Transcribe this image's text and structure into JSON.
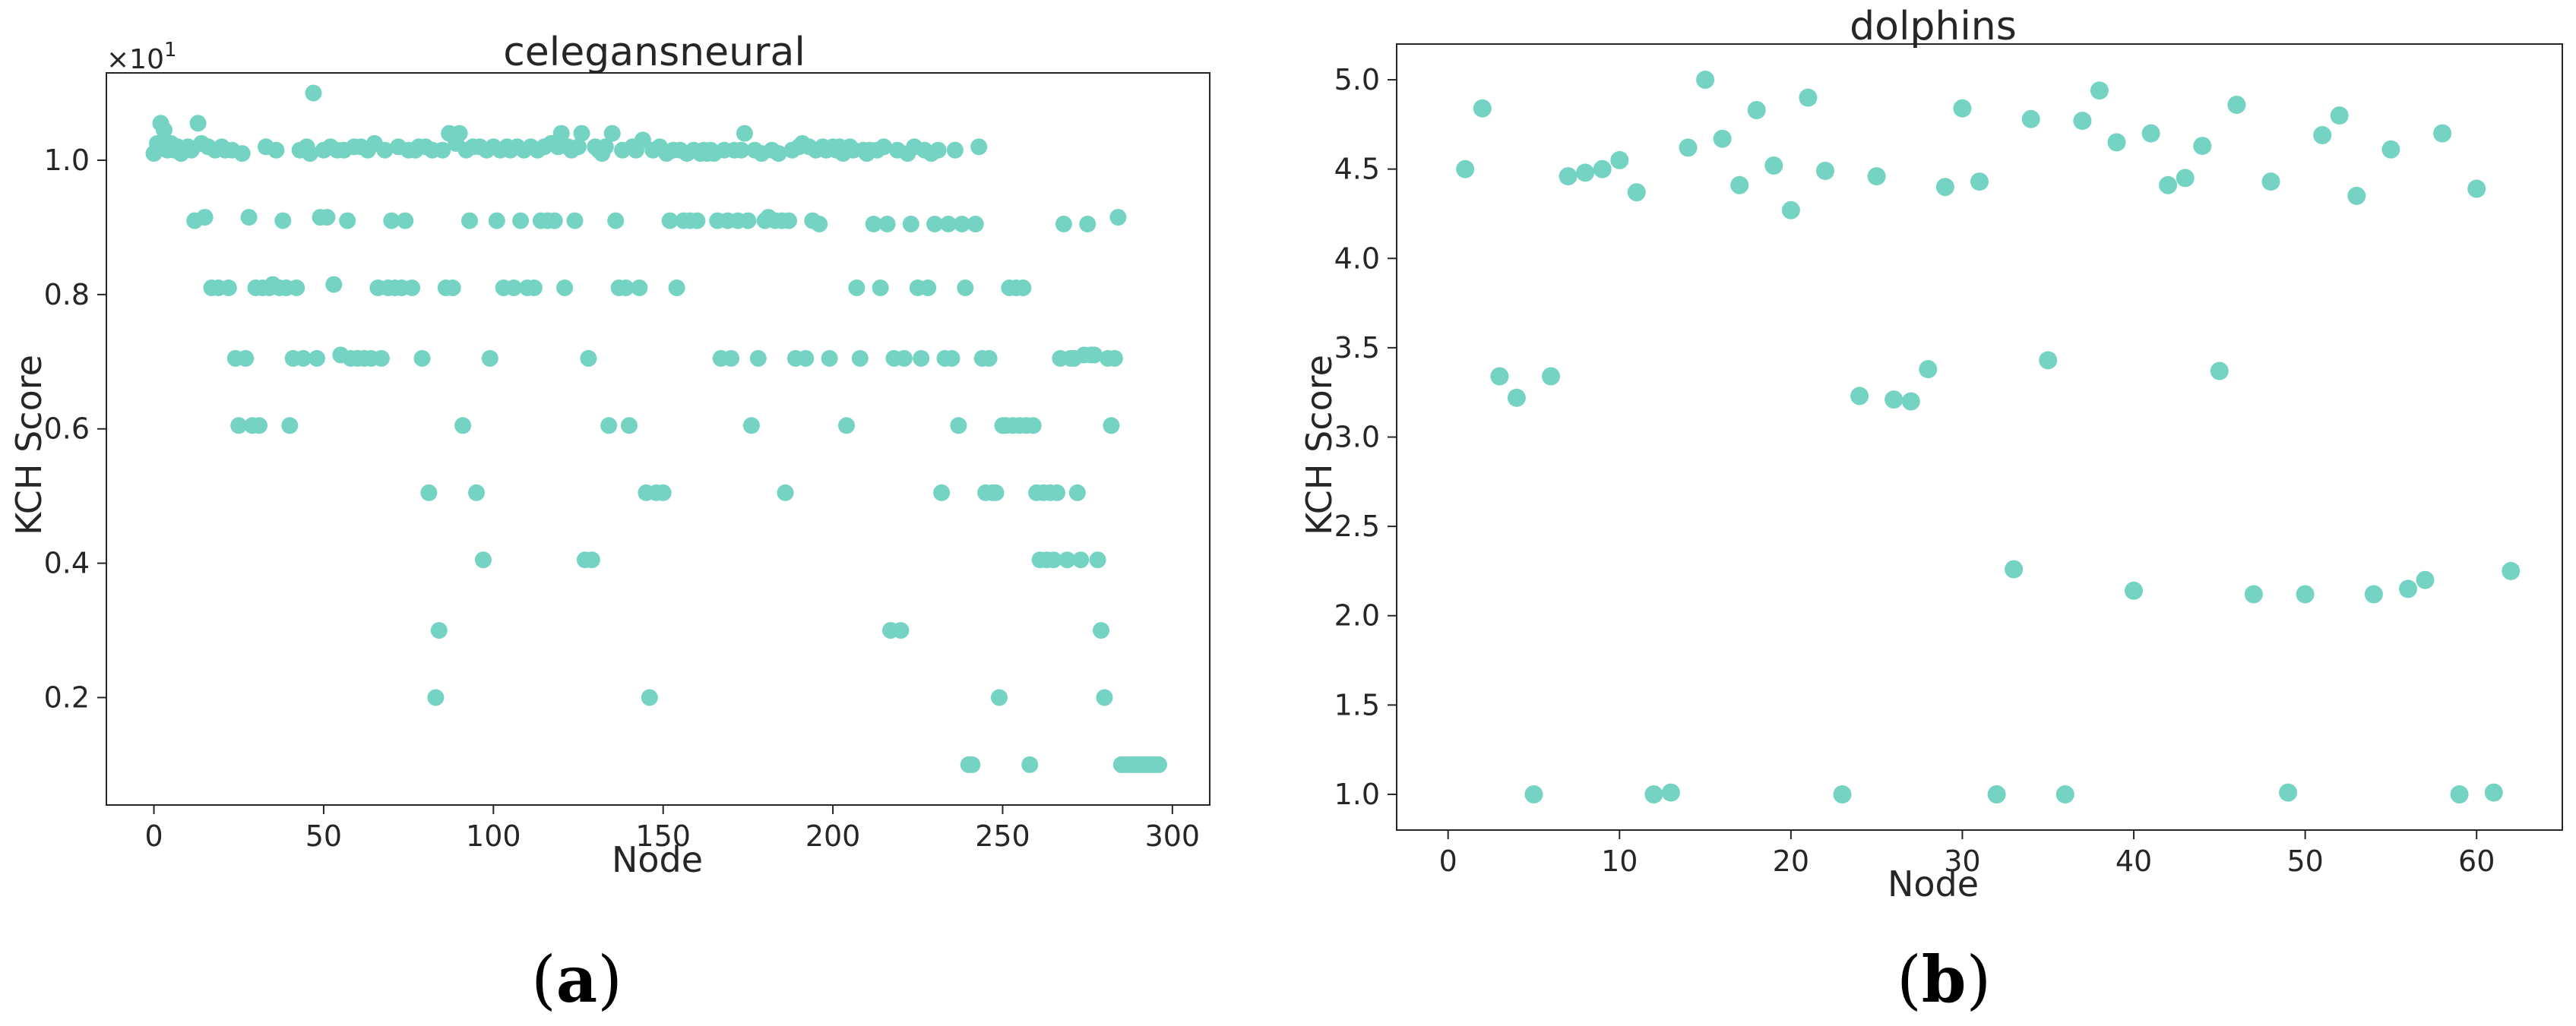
{
  "figure": {
    "panel_labels": [
      {
        "open": "(",
        "letter": "a",
        "close": ")"
      },
      {
        "open": "(",
        "letter": "b",
        "close": ")"
      }
    ]
  },
  "colors": {
    "marker": "#74d3c2",
    "axis": "#262626"
  },
  "chart_data": [
    {
      "type": "scatter",
      "title": "celegansneural",
      "xlabel": "Node",
      "ylabel": "KCH Score",
      "offset_text": "×10",
      "offset_exponent": "1",
      "xlim": [
        -14,
        311
      ],
      "ylim": [
        0.04,
        1.13
      ],
      "xticks": [
        0,
        50,
        100,
        150,
        200,
        250,
        300
      ],
      "yticks": [
        0.2,
        0.4,
        0.6,
        0.8,
        1.0
      ],
      "ytick_labels": [
        "0.2",
        "0.4",
        "0.6",
        "0.8",
        "1.0"
      ],
      "grid": false,
      "series": [
        {
          "x": [
            0,
            1,
            2,
            3,
            4,
            5,
            6,
            7,
            8,
            9,
            10,
            11,
            12,
            13,
            14,
            15,
            16,
            17,
            18,
            19,
            20,
            21,
            22,
            23,
            24,
            25,
            26,
            27,
            28,
            29,
            30,
            31,
            32,
            33,
            34,
            35,
            36,
            37,
            38,
            39,
            40,
            41,
            42,
            43,
            44,
            45,
            46,
            47,
            48,
            49,
            50,
            51,
            52,
            53,
            54,
            55,
            56,
            57,
            58,
            59,
            60,
            61,
            62,
            63,
            64,
            65,
            66,
            67,
            68,
            69,
            70,
            71,
            72,
            73,
            74,
            75,
            76,
            77,
            78,
            79,
            80,
            81,
            82,
            83,
            84,
            85,
            86,
            87,
            88,
            89,
            90,
            91,
            92,
            93,
            94,
            95,
            96,
            97,
            98,
            99,
            100,
            101,
            102,
            103,
            104,
            105,
            106,
            107,
            108,
            109,
            110,
            111,
            112,
            113,
            114,
            115,
            116,
            117,
            118,
            119,
            120,
            121,
            122,
            123,
            124,
            125,
            126,
            127,
            128,
            129,
            130,
            131,
            132,
            133,
            134,
            135,
            136,
            137,
            138,
            139,
            140,
            141,
            142,
            143,
            144,
            145,
            146,
            147,
            148,
            149,
            150,
            151,
            152,
            153,
            154,
            155,
            156,
            157,
            158,
            159,
            160,
            161,
            162,
            163,
            164,
            165,
            166,
            167,
            168,
            169,
            170,
            171,
            172,
            173,
            174,
            175,
            176,
            177,
            178,
            179,
            180,
            181,
            182,
            183,
            184,
            185,
            186,
            187,
            188,
            189,
            190,
            191,
            192,
            193,
            194,
            195,
            196,
            197,
            198,
            199,
            200,
            201,
            202,
            203,
            204,
            205,
            206,
            207,
            208,
            209,
            210,
            211,
            212,
            213,
            214,
            215,
            216,
            217,
            218,
            219,
            220,
            221,
            222,
            223,
            224,
            225,
            226,
            227,
            228,
            229,
            230,
            231,
            232,
            233,
            234,
            235,
            236,
            237,
            238,
            239,
            240,
            241,
            242,
            243,
            244,
            245,
            246,
            247,
            248,
            249,
            250,
            251,
            252,
            253,
            254,
            255,
            256,
            257,
            258,
            259,
            260,
            261,
            262,
            263,
            264,
            265,
            266,
            267,
            268,
            269,
            270,
            271,
            272,
            273,
            274,
            275,
            276,
            277,
            278,
            279,
            280,
            281,
            282,
            283,
            284,
            285,
            286,
            287,
            288,
            289,
            290,
            291,
            292,
            293,
            294,
            295,
            296
          ],
          "y": [
            1.01,
            1.025,
            1.055,
            1.045,
            1.015,
            1.025,
            1.015,
            1.02,
            1.01,
            1.015,
            1.02,
            1.015,
            0.91,
            1.055,
            1.025,
            0.915,
            1.02,
            0.81,
            1.015,
            0.81,
            1.02,
            1.015,
            0.81,
            1.015,
            0.705,
            0.605,
            1.01,
            0.705,
            0.915,
            0.605,
            0.81,
            0.605,
            0.81,
            1.02,
            0.81,
            0.815,
            1.015,
            0.81,
            0.91,
            0.81,
            0.605,
            0.705,
            0.81,
            1.015,
            0.705,
            1.02,
            1.01,
            1.1,
            0.705,
            0.915,
            1.015,
            0.915,
            1.02,
            0.815,
            1.015,
            0.71,
            1.015,
            0.91,
            0.705,
            1.02,
            0.705,
            1.02,
            0.705,
            1.015,
            0.705,
            1.025,
            0.81,
            0.705,
            1.015,
            0.81,
            0.91,
            0.81,
            1.02,
            0.81,
            0.91,
            1.015,
            0.81,
            1.015,
            1.02,
            0.705,
            1.02,
            0.505,
            1.015,
            0.2,
            0.3,
            1.015,
            0.81,
            1.04,
            0.81,
            1.025,
            1.04,
            0.605,
            1.015,
            0.91,
            1.02,
            0.505,
            1.02,
            0.405,
            1.015,
            0.705,
            1.02,
            0.91,
            1.015,
            0.81,
            1.02,
            1.015,
            0.81,
            1.02,
            0.91,
            1.015,
            0.81,
            1.02,
            0.81,
            1.015,
            0.91,
            1.02,
            0.91,
            1.025,
            0.91,
            1.02,
            1.04,
            0.81,
            1.02,
            1.015,
            0.91,
            1.02,
            1.04,
            0.405,
            0.705,
            0.405,
            1.02,
            1.015,
            1.01,
            1.02,
            0.605,
            1.04,
            0.91,
            0.81,
            1.015,
            0.81,
            0.605,
            1.02,
            1.015,
            0.81,
            1.03,
            0.505,
            0.2,
            1.015,
            0.505,
            1.02,
            0.505,
            1.01,
            0.91,
            1.015,
            0.81,
            1.015,
            0.91,
            1.01,
            0.91,
            1.015,
            0.91,
            1.01,
            1.015,
            1.01,
            1.015,
            1.01,
            0.91,
            0.705,
            1.015,
            0.91,
            0.705,
            1.015,
            0.91,
            1.015,
            1.04,
            0.91,
            0.605,
            1.015,
            0.705,
            1.01,
            0.91,
            0.915,
            1.015,
            0.91,
            1.01,
            0.91,
            0.505,
            0.91,
            1.015,
            0.705,
            1.02,
            1.025,
            0.705,
            1.02,
            0.91,
            1.015,
            0.905,
            1.02,
            1.015,
            0.705,
            1.02,
            1.015,
            1.02,
            1.01,
            0.605,
            1.02,
            1.015,
            0.81,
            0.705,
            1.015,
            1.01,
            1.015,
            0.905,
            1.015,
            0.81,
            1.02,
            0.905,
            0.3,
            0.705,
            1.015,
            0.3,
            0.705,
            1.01,
            0.905,
            1.02,
            0.81,
            0.705,
            1.015,
            0.81,
            1.01,
            0.905,
            1.015,
            0.505,
            0.705,
            0.905,
            0.705,
            1.015,
            0.605,
            0.905,
            0.81,
            0.1,
            0.1,
            0.905,
            1.02,
            0.705,
            0.505,
            0.705,
            0.505,
            0.505,
            0.2,
            0.605,
            0.605,
            0.81,
            0.605,
            0.81,
            0.605,
            0.81,
            0.605,
            0.1,
            0.605,
            0.505,
            0.405,
            0.505,
            0.405,
            0.505,
            0.405,
            0.505,
            0.705,
            0.905,
            0.405,
            0.705,
            0.705,
            0.505,
            0.405,
            0.71,
            0.905,
            0.71,
            0.71,
            0.405,
            0.3,
            0.2,
            0.705,
            0.605,
            0.705,
            0.915,
            0.1,
            0.1,
            0.1,
            0.1,
            0.1,
            0.1,
            0.1,
            0.1,
            0.1,
            0.1,
            0.1,
            0.1
          ]
        }
      ]
    },
    {
      "type": "scatter",
      "title": "dolphins",
      "xlabel": "Node",
      "ylabel": "KCH Score",
      "xlim": [
        -3,
        65
      ],
      "ylim": [
        0.8,
        5.2
      ],
      "xticks": [
        0,
        10,
        20,
        30,
        40,
        50,
        60
      ],
      "yticks": [
        1.0,
        1.5,
        2.0,
        2.5,
        3.0,
        3.5,
        4.0,
        4.5,
        5.0
      ],
      "ytick_labels": [
        "1.0",
        "1.5",
        "2.0",
        "2.5",
        "3.0",
        "3.5",
        "4.0",
        "4.5",
        "5.0"
      ],
      "grid": false,
      "series": [
        {
          "x": [
            1,
            2,
            3,
            4,
            5,
            6,
            7,
            8,
            9,
            10,
            11,
            12,
            13,
            14,
            15,
            16,
            17,
            18,
            19,
            20,
            21,
            22,
            23,
            24,
            25,
            26,
            27,
            28,
            29,
            30,
            31,
            32,
            33,
            34,
            35,
            36,
            37,
            38,
            39,
            40,
            41,
            42,
            43,
            44,
            45,
            46,
            47,
            48,
            49,
            50,
            51,
            52,
            53,
            54,
            55,
            56,
            57,
            58,
            59,
            60,
            61,
            62
          ],
          "y": [
            4.5,
            4.84,
            3.34,
            3.22,
            1.0,
            3.34,
            4.46,
            4.48,
            4.5,
            4.55,
            4.37,
            1.0,
            1.01,
            4.62,
            5.0,
            4.67,
            4.41,
            4.83,
            4.52,
            4.27,
            4.9,
            4.49,
            1.0,
            3.23,
            4.46,
            3.21,
            3.2,
            3.38,
            4.4,
            4.84,
            4.43,
            1.0,
            2.26,
            4.78,
            3.43,
            1.0,
            4.77,
            4.94,
            4.65,
            2.14,
            4.7,
            4.41,
            4.45,
            4.63,
            3.37,
            4.86,
            2.12,
            4.43,
            1.01,
            2.12,
            4.69,
            4.8,
            4.35,
            2.12,
            4.61,
            2.15,
            2.2,
            4.7,
            1.0,
            4.39,
            1.01,
            2.25
          ]
        }
      ]
    }
  ]
}
